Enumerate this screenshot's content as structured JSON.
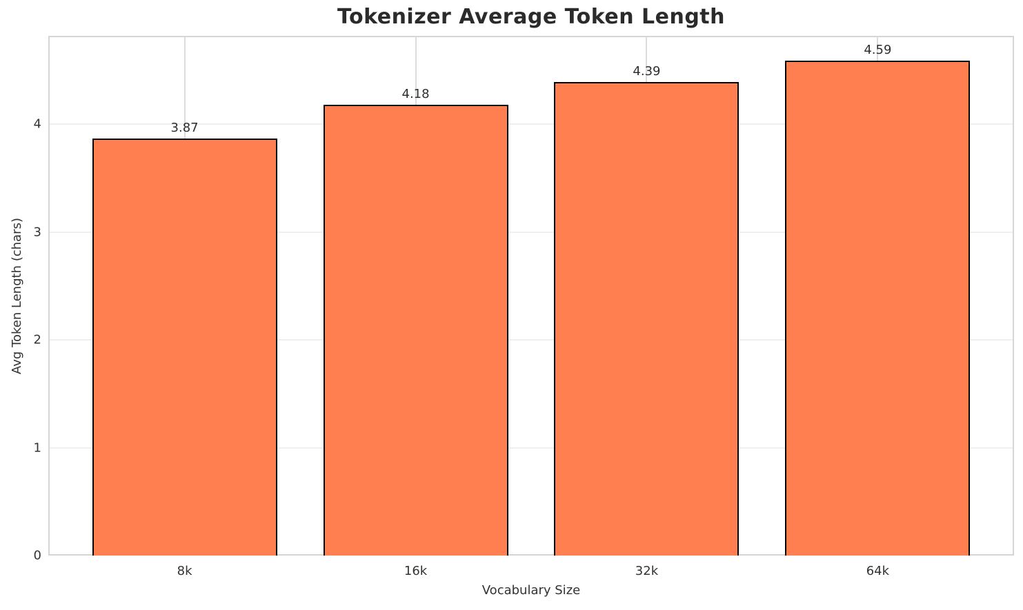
{
  "title": "Tokenizer Average Token Length",
  "chart_data": {
    "type": "bar",
    "title": "Tokenizer Average Token Length",
    "xlabel": "Vocabulary Size",
    "ylabel": "Avg Token Length (chars)",
    "categories": [
      "8k",
      "16k",
      "32k",
      "64k"
    ],
    "values": [
      3.87,
      4.18,
      4.39,
      4.59
    ],
    "value_labels": [
      "3.87",
      "4.18",
      "4.39",
      "4.59"
    ],
    "yticks": [
      0,
      1,
      2,
      3,
      4
    ],
    "ytick_labels": [
      "0",
      "1",
      "2",
      "3",
      "4"
    ],
    "ylim": [
      0,
      4.82
    ],
    "xlim": [
      -0.59,
      3.59
    ],
    "bar_width_units": 0.8,
    "grid": true,
    "legend": "none",
    "bar_color": "#FF7F50",
    "bar_edge_color": "#000000"
  }
}
